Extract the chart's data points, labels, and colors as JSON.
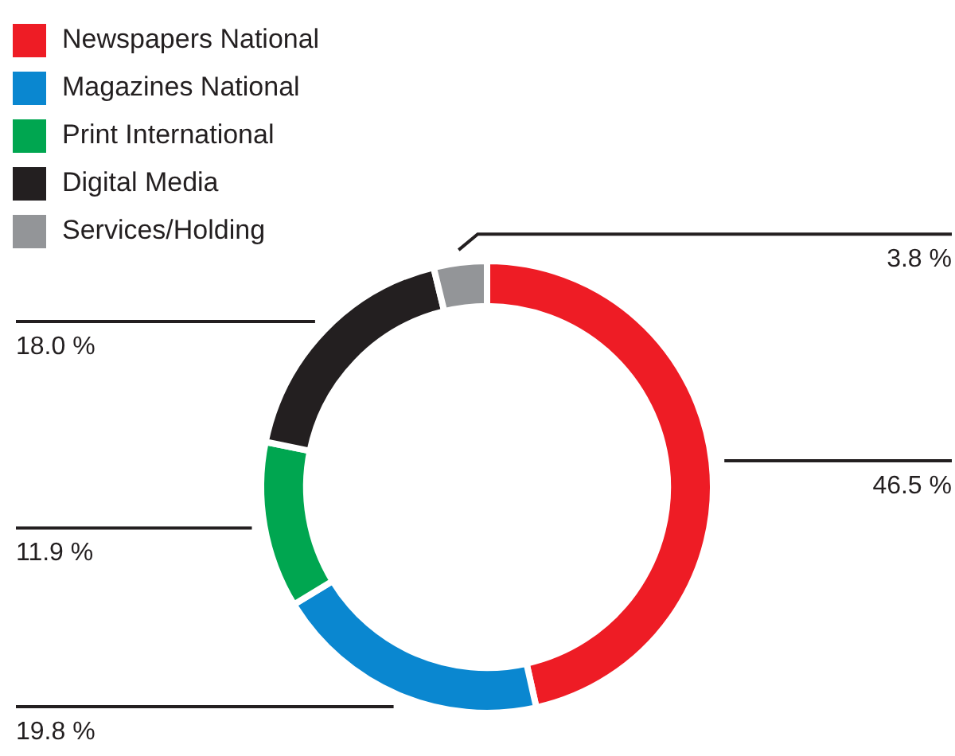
{
  "chart_data": {
    "type": "donut",
    "categories": [
      "Newspapers National",
      "Magazines National",
      "Print International",
      "Digital Media",
      "Services/Holding"
    ],
    "values": [
      46.5,
      19.8,
      11.9,
      18.0,
      3.8
    ],
    "colors": [
      "#ee1c25",
      "#0a87d0",
      "#00a650",
      "#231f20",
      "#939598"
    ],
    "value_labels": [
      "46.5 %",
      "19.8 %",
      "11.9 %",
      "18.0 %",
      "3.8 %"
    ],
    "legend": "top left"
  }
}
